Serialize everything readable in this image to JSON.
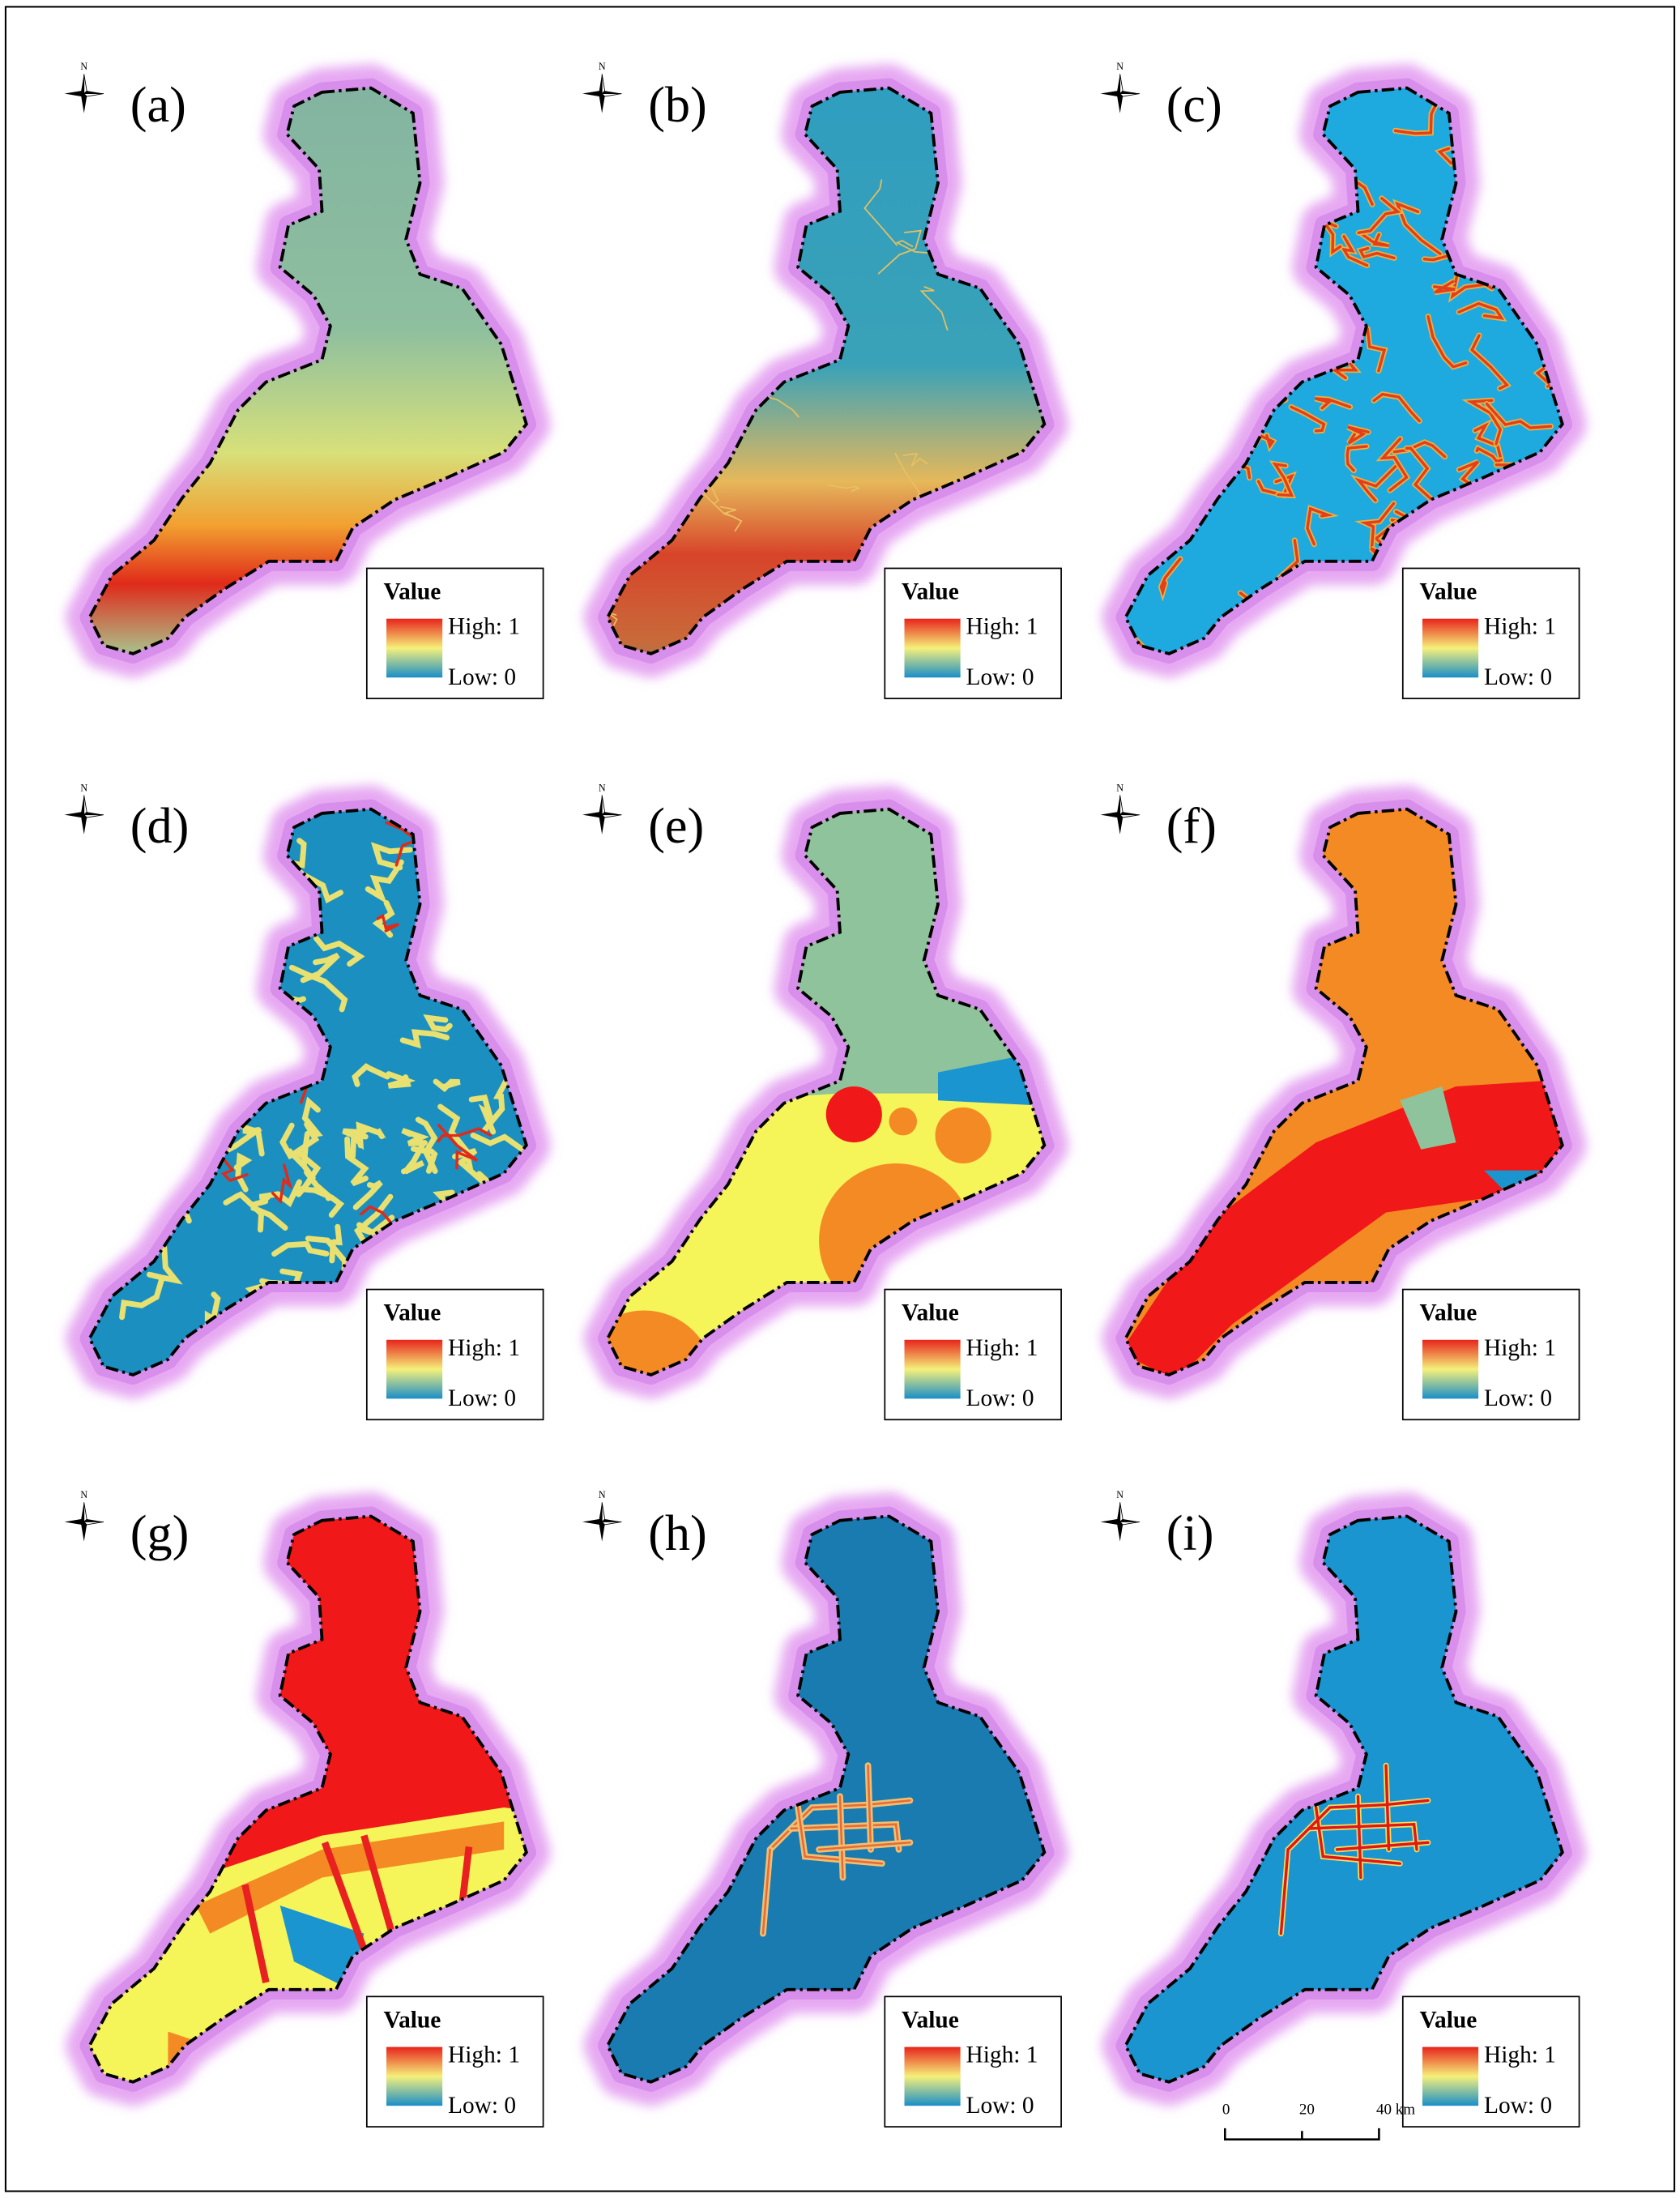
{
  "panels": [
    {
      "label": "(a)",
      "north": "N",
      "legend": {
        "title": "Value",
        "high": "High: 1",
        "low": "Low: 0"
      }
    },
    {
      "label": "(b)",
      "north": "N",
      "legend": {
        "title": "Value",
        "high": "High: 1",
        "low": "Low: 0"
      }
    },
    {
      "label": "(c)",
      "north": "N",
      "legend": {
        "title": "Value",
        "high": "High: 1",
        "low": "Low: 0"
      }
    },
    {
      "label": "(d)",
      "north": "N",
      "legend": {
        "title": "Value",
        "high": "High: 1",
        "low": "Low: 0"
      }
    },
    {
      "label": "(e)",
      "north": "N",
      "legend": {
        "title": "Value",
        "high": "High: 1",
        "low": "Low: 0"
      }
    },
    {
      "label": "(f)",
      "north": "N",
      "legend": {
        "title": "Value",
        "high": "High: 1",
        "low": "Low: 0"
      }
    },
    {
      "label": "(g)",
      "north": "N",
      "legend": {
        "title": "Value",
        "high": "High: 1",
        "low": "Low: 0"
      }
    },
    {
      "label": "(h)",
      "north": "N",
      "legend": {
        "title": "Value",
        "high": "High: 1",
        "low": "Low: 0"
      }
    },
    {
      "label": "(i)",
      "north": "N",
      "legend": {
        "title": "Value",
        "high": "High: 1",
        "low": "Low: 0"
      }
    }
  ],
  "scale_bar": {
    "ticks": [
      "0",
      "20",
      "40 km"
    ]
  }
}
